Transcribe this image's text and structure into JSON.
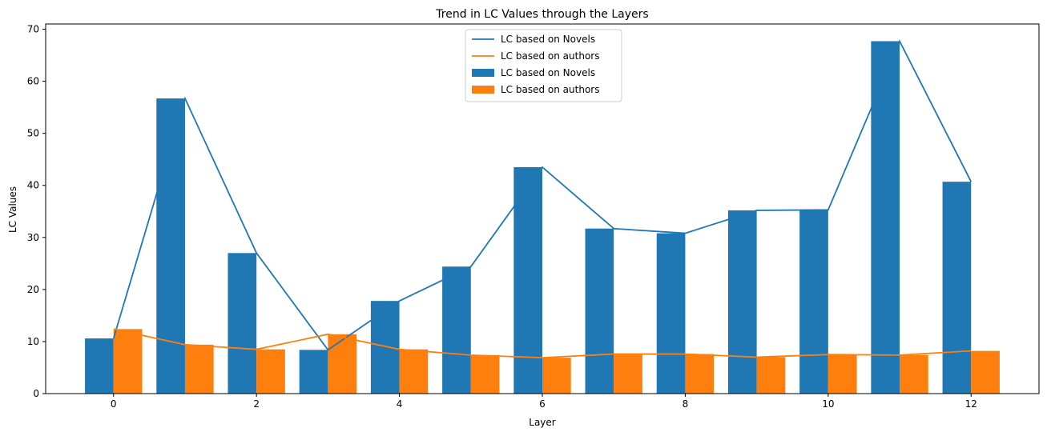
{
  "chart_data": {
    "type": "bar",
    "title": "Trend in LC Values through the Layers",
    "xlabel": "Layer",
    "ylabel": "LC Values",
    "xlim": [
      -0.95,
      12.95
    ],
    "ylim": [
      0,
      71
    ],
    "x_ticks": [
      0,
      2,
      4,
      6,
      8,
      10,
      12
    ],
    "y_ticks": [
      0,
      10,
      20,
      30,
      40,
      50,
      60,
      70
    ],
    "legend_position": "upper center",
    "categories": [
      0,
      1,
      2,
      3,
      4,
      5,
      6,
      7,
      8,
      9,
      10,
      11,
      12
    ],
    "series": [
      {
        "name": "LC based on Novels",
        "color": "#1f77b4",
        "values": [
          10.6,
          56.7,
          27.0,
          8.4,
          17.8,
          24.4,
          43.5,
          31.7,
          30.8,
          35.2,
          35.3,
          67.7,
          40.7
        ]
      },
      {
        "name": "LC based on authors",
        "color": "#ff7f0e",
        "values": [
          12.4,
          9.4,
          8.5,
          11.4,
          8.5,
          7.4,
          6.9,
          7.6,
          7.6,
          7.0,
          7.5,
          7.4,
          8.2
        ]
      }
    ],
    "legend": [
      {
        "label": "LC based on Novels",
        "kind": "line",
        "color": "#1f77b4"
      },
      {
        "label": "LC based on authors",
        "kind": "line",
        "color": "#ff7f0e"
      },
      {
        "label": "LC based on Novels",
        "kind": "bar",
        "color": "#1f77b4"
      },
      {
        "label": "LC based on authors",
        "kind": "bar",
        "color": "#ff7f0e"
      }
    ]
  }
}
